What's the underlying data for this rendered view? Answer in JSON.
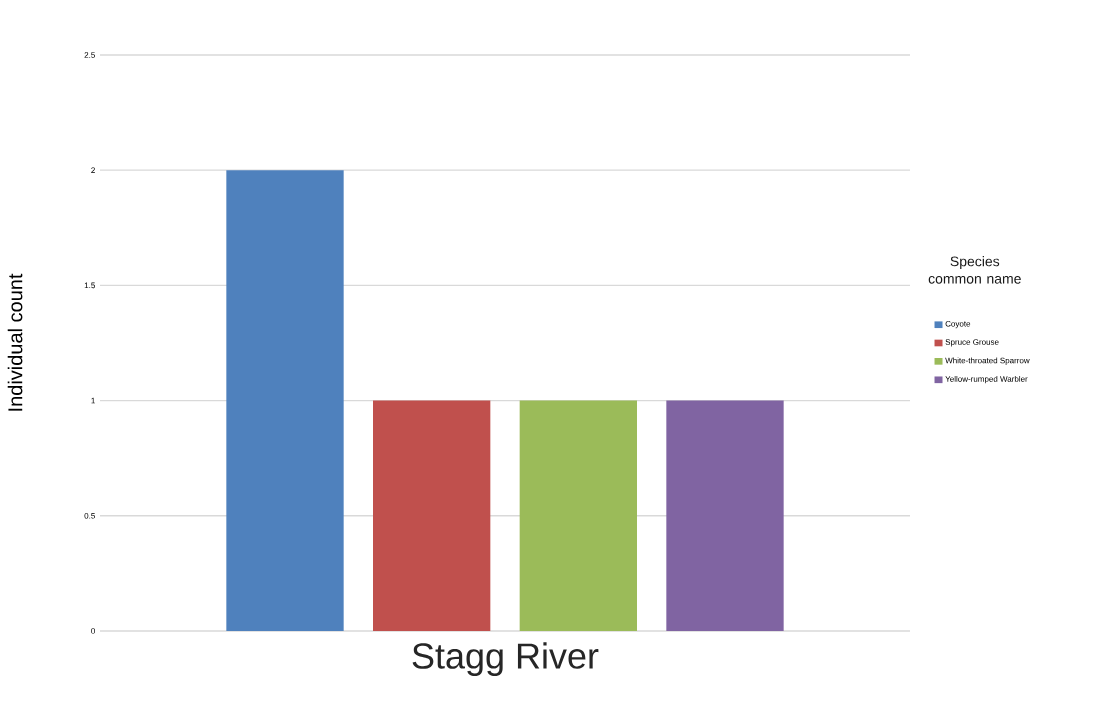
{
  "chart_data": {
    "type": "bar",
    "ylabel": "Individual count",
    "legend_title": "Species common name",
    "categories": [
      "Stagg River"
    ],
    "series": [
      {
        "name": "Coyote",
        "color": "#4f81bd",
        "values": [
          2
        ]
      },
      {
        "name": "Spruce Grouse",
        "color": "#c0504d",
        "values": [
          1
        ]
      },
      {
        "name": "White-throated Sparrow",
        "color": "#9bbb59",
        "values": [
          1
        ]
      },
      {
        "name": "Yellow-rumped Warbler",
        "color": "#8064a2",
        "values": [
          1
        ]
      }
    ],
    "ylim": [
      0,
      2.5
    ],
    "yticks": [
      0,
      0.5,
      1,
      1.5,
      2,
      2.5
    ],
    "grid": "y",
    "legend": "right"
  }
}
